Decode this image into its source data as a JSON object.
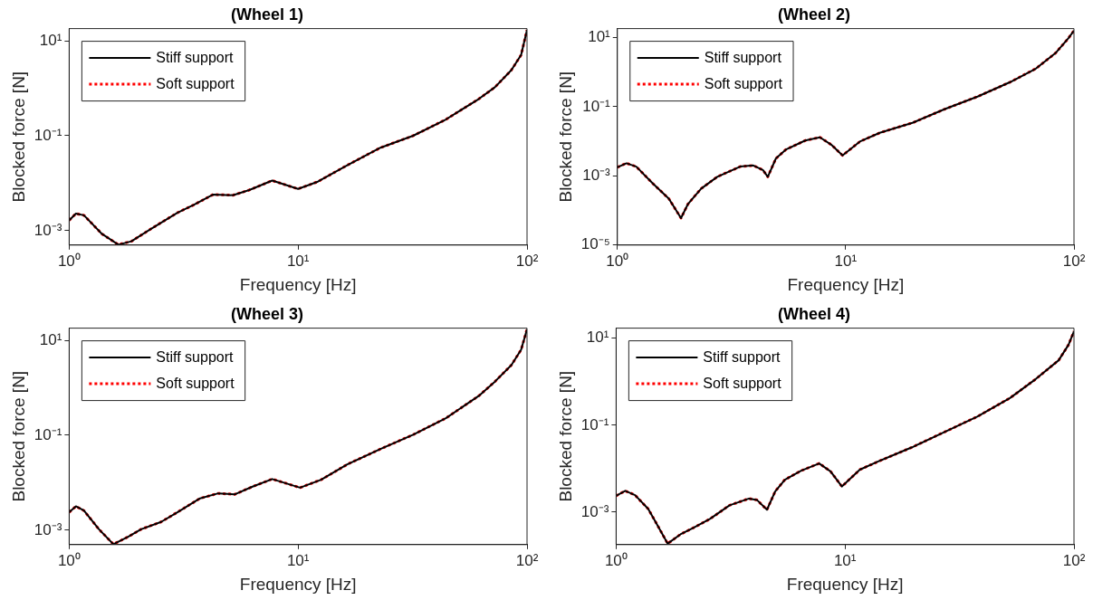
{
  "chart_data": [
    {
      "type": "line",
      "title": "(Wheel 1)",
      "xlabel": "Frequency [Hz]",
      "ylabel": "Blocked force [N]",
      "log": "xy",
      "legend": "top left",
      "grid": false,
      "x": [
        1,
        1.07,
        1.16,
        1.39,
        1.64,
        1.87,
        2.28,
        2.97,
        3.5,
        4.26,
        5.19,
        6.12,
        7.71,
        10,
        12.2,
        16.4,
        22.9,
        31.8,
        44.2,
        61.4,
        72.4,
        85.4,
        94.2,
        100
      ],
      "xlim": [
        1,
        100
      ],
      "xticks": [
        {
          "value": 1,
          "label": "10⁰"
        },
        {
          "value": 10,
          "label": "10¹"
        },
        {
          "value": 100,
          "label": "10²"
        }
      ],
      "ylim": [
        0.0005,
        18
      ],
      "yticks": [
        {
          "value": 0.001,
          "label": "10⁻³"
        },
        {
          "value": 0.1,
          "label": "10⁻¹"
        },
        {
          "value": 10,
          "label": "10¹"
        }
      ],
      "series": [
        {
          "name": "Stiff support",
          "color": "#000000",
          "line_style": "solid",
          "values": [
            0.00166,
            0.0023,
            0.00212,
            0.00086,
            0.00051,
            0.0006,
            0.0011,
            0.0024,
            0.0035,
            0.0058,
            0.0056,
            0.0072,
            0.0114,
            0.0076,
            0.0108,
            0.024,
            0.056,
            0.1,
            0.22,
            0.59,
            1.05,
            2.4,
            5,
            16.9
          ]
        },
        {
          "name": "Soft support",
          "color": "#ff0000",
          "line_style": "dotted",
          "values": [
            0.00166,
            0.0023,
            0.00212,
            0.00086,
            0.00051,
            0.0006,
            0.0011,
            0.0024,
            0.0035,
            0.0058,
            0.0056,
            0.0072,
            0.0114,
            0.0076,
            0.0108,
            0.024,
            0.056,
            0.1,
            0.22,
            0.59,
            1.05,
            2.4,
            5,
            16.9
          ]
        }
      ]
    },
    {
      "type": "line",
      "title": "(Wheel 2)",
      "xlabel": "Frequency [Hz]",
      "ylabel": "Blocked force [N]",
      "log": "xy",
      "legend": "top left",
      "grid": false,
      "x": [
        1,
        1.096,
        1.21,
        1.43,
        1.68,
        1.9,
        2.04,
        2.33,
        2.74,
        3.45,
        3.94,
        4.34,
        4.56,
        4.95,
        5.46,
        6.65,
        7.71,
        8.64,
        9.69,
        11.6,
        14.1,
        19.6,
        27.2,
        37.8,
        52.5,
        68.1,
        82.9,
        94.6,
        100
      ],
      "xlim": [
        1,
        100
      ],
      "xticks": [
        {
          "value": 1,
          "label": "10⁰"
        },
        {
          "value": 10,
          "label": "10¹"
        },
        {
          "value": 100,
          "label": "10²"
        }
      ],
      "ylim": [
        1e-05,
        18
      ],
      "yticks": [
        {
          "value": 1e-05,
          "label": "10⁻⁵"
        },
        {
          "value": 0.001,
          "label": "10⁻³"
        },
        {
          "value": 0.1,
          "label": "10⁻¹"
        },
        {
          "value": 10,
          "label": "10¹"
        }
      ],
      "series": [
        {
          "name": "Stiff support",
          "color": "#000000",
          "line_style": "solid",
          "values": [
            0.00176,
            0.00231,
            0.00185,
            0.0006,
            0.00022,
            6e-05,
            0.000155,
            0.00043,
            0.00094,
            0.00185,
            0.002,
            0.00147,
            0.00094,
            0.0032,
            0.0057,
            0.0105,
            0.013,
            0.008,
            0.0039,
            0.01,
            0.0175,
            0.034,
            0.085,
            0.195,
            0.51,
            1.26,
            3.5,
            9.5,
            15.7
          ]
        },
        {
          "name": "Soft support",
          "color": "#ff0000",
          "line_style": "dotted",
          "values": [
            0.00176,
            0.00231,
            0.00185,
            0.0006,
            0.00022,
            6e-05,
            0.000155,
            0.00043,
            0.00094,
            0.00185,
            0.002,
            0.00147,
            0.00094,
            0.0032,
            0.0057,
            0.0105,
            0.013,
            0.008,
            0.0039,
            0.01,
            0.0175,
            0.034,
            0.085,
            0.195,
            0.51,
            1.26,
            3.5,
            9.5,
            15.7
          ]
        }
      ]
    },
    {
      "type": "line",
      "title": "(Wheel 3)",
      "xlabel": "Frequency [Hz]",
      "ylabel": "Blocked force [N]",
      "log": "xy",
      "legend": "top left",
      "grid": false,
      "x": [
        1,
        1.07,
        1.16,
        1.35,
        1.56,
        1.81,
        2.06,
        2.52,
        2.97,
        3.73,
        4.48,
        5.28,
        6.32,
        7.71,
        10.2,
        12.6,
        16.4,
        22.9,
        31.8,
        44.2,
        61.4,
        72.4,
        85.4,
        94.2,
        100
      ],
      "xlim": [
        1,
        100
      ],
      "xticks": [
        {
          "value": 1,
          "label": "10⁰"
        },
        {
          "value": 10,
          "label": "10¹"
        },
        {
          "value": 100,
          "label": "10²"
        }
      ],
      "ylim": [
        0.0005,
        18
      ],
      "yticks": [
        {
          "value": 0.001,
          "label": "10⁻³"
        },
        {
          "value": 0.1,
          "label": "10⁻¹"
        },
        {
          "value": 10,
          "label": "10¹"
        }
      ],
      "series": [
        {
          "name": "Stiff support",
          "color": "#000000",
          "line_style": "solid",
          "values": [
            0.0024,
            0.0032,
            0.0026,
            0.00105,
            0.00051,
            0.00073,
            0.00105,
            0.0015,
            0.0024,
            0.0047,
            0.006,
            0.0057,
            0.0083,
            0.012,
            0.0079,
            0.0116,
            0.0244,
            0.0515,
            0.103,
            0.229,
            0.67,
            1.35,
            3,
            6.3,
            17
          ]
        },
        {
          "name": "Soft support",
          "color": "#ff0000",
          "line_style": "dotted",
          "values": [
            0.0024,
            0.0032,
            0.0026,
            0.00105,
            0.00051,
            0.00073,
            0.00105,
            0.0015,
            0.0024,
            0.0047,
            0.006,
            0.0057,
            0.0083,
            0.012,
            0.0079,
            0.0116,
            0.0244,
            0.0515,
            0.103,
            0.229,
            0.67,
            1.35,
            3,
            6.3,
            17
          ]
        }
      ]
    },
    {
      "type": "line",
      "title": "(Wheel 4)",
      "xlabel": "Frequency [Hz]",
      "ylabel": "Blocked force [N]",
      "log": "xy",
      "legend": "top left",
      "grid": false,
      "x": [
        1,
        1.096,
        1.21,
        1.38,
        1.52,
        1.68,
        1.91,
        2.18,
        2.57,
        3.13,
        3.81,
        4.13,
        4.56,
        4.95,
        5.46,
        6.43,
        7.71,
        8.64,
        9.69,
        11.6,
        14.1,
        19.6,
        27.2,
        37.8,
        52.5,
        68.1,
        85.7,
        94.6,
        100
      ],
      "xlim": [
        1,
        100
      ],
      "xticks": [
        {
          "value": 1,
          "label": "10⁰"
        },
        {
          "value": 10,
          "label": "10¹"
        },
        {
          "value": 100,
          "label": "10²"
        }
      ],
      "ylim": [
        0.00018,
        17
      ],
      "yticks": [
        {
          "value": 0.001,
          "label": "10⁻³"
        },
        {
          "value": 0.1,
          "label": "10⁻¹"
        },
        {
          "value": 10,
          "label": "10¹"
        }
      ],
      "series": [
        {
          "name": "Stiff support",
          "color": "#000000",
          "line_style": "solid",
          "values": [
            0.00238,
            0.0031,
            0.00247,
            0.0012,
            0.00049,
            0.00019,
            0.00031,
            0.00044,
            0.0007,
            0.00144,
            0.00206,
            0.0019,
            0.00114,
            0.003,
            0.0056,
            0.009,
            0.0132,
            0.0087,
            0.0039,
            0.0095,
            0.015,
            0.031,
            0.07,
            0.157,
            0.42,
            1.15,
            3.1,
            7,
            14.4
          ]
        },
        {
          "name": "Soft support",
          "color": "#ff0000",
          "line_style": "dotted",
          "values": [
            0.00238,
            0.0031,
            0.00247,
            0.0012,
            0.00049,
            0.00019,
            0.00031,
            0.00044,
            0.0007,
            0.00144,
            0.00206,
            0.0019,
            0.00114,
            0.003,
            0.0056,
            0.009,
            0.0132,
            0.0087,
            0.0039,
            0.0095,
            0.015,
            0.031,
            0.07,
            0.157,
            0.42,
            1.15,
            3.1,
            7,
            14.4
          ]
        }
      ]
    }
  ]
}
